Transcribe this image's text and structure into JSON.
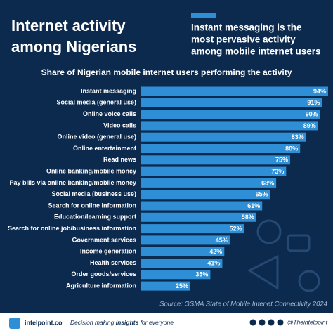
{
  "chart_data": {
    "type": "bar",
    "orientation": "horizontal",
    "title": [
      "Internet activity",
      "among Nigerians"
    ],
    "headline": [
      "Instant messaging is the",
      "most pervasive activity",
      "among mobile internet users"
    ],
    "subtitle": "Share of Nigerian mobile internet users performing the activity",
    "categories": [
      "Instant messaging",
      "Social media (general use)",
      "Online voice calls",
      "Video calls",
      "Online video (general use)",
      "Online entertainment",
      "Read news",
      "Online banking/mobile money",
      "Pay bills via online banking/mobile money",
      "Social media (business use)",
      "Search for online information",
      "Education/learning support",
      "Search for online job/business information",
      "Government services",
      "Income generation",
      "Health services",
      "Order goods/services",
      "Agriculture information"
    ],
    "values": [
      94,
      91,
      90,
      89,
      83,
      80,
      75,
      73,
      68,
      65,
      61,
      58,
      52,
      45,
      42,
      41,
      35,
      25
    ],
    "value_labels": [
      "94%",
      "91%",
      "90%",
      "89%",
      "83%",
      "80%",
      "75%",
      "73%",
      "68%",
      "65%",
      "61%",
      "58%",
      "52%",
      "45%",
      "42%",
      "41%",
      "35%",
      "25%"
    ],
    "color": "#2e8fd6",
    "xlim": [
      0,
      100
    ],
    "source": "Source: GSMA State of Mobile Intenet Connectivity 2024"
  },
  "footer": {
    "brand": "intelpoint.co",
    "tagline": [
      "Decision making ",
      "insights",
      " for everyone"
    ],
    "handle": "@Theintelpoint"
  }
}
